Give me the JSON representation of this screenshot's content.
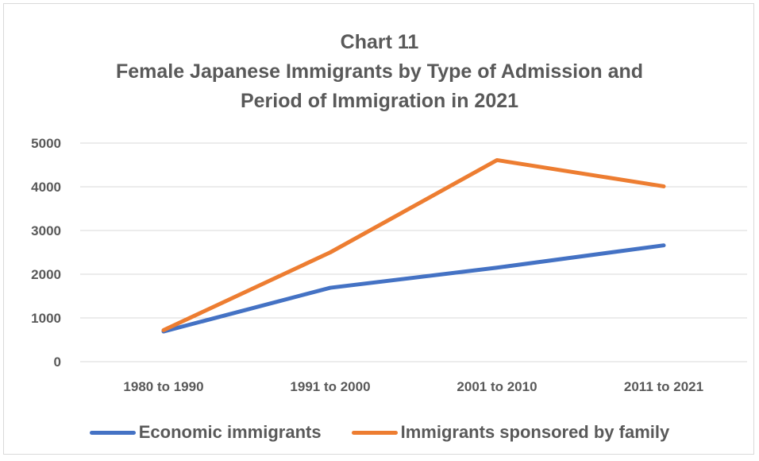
{
  "chart_data": {
    "type": "line",
    "title_lines": [
      "Chart 11",
      "Female Japanese Immigrants by Type of Admission and",
      "Period of Immigration in 2021"
    ],
    "categories": [
      "1980 to 1990",
      "1991 to 2000",
      "2001 to 2010",
      "2011 to 2021"
    ],
    "series": [
      {
        "name": "Economic immigrants",
        "color": "#4472C4",
        "values": [
          690,
          1690,
          2150,
          2660
        ]
      },
      {
        "name": "Immigrants sponsored by family",
        "color": "#ED7D31",
        "values": [
          720,
          2500,
          4610,
          4010
        ]
      }
    ],
    "ylim": [
      0,
      5000
    ],
    "yticks": [
      0,
      1000,
      2000,
      3000,
      4000,
      5000
    ],
    "grid": true,
    "legend_position": "bottom"
  }
}
